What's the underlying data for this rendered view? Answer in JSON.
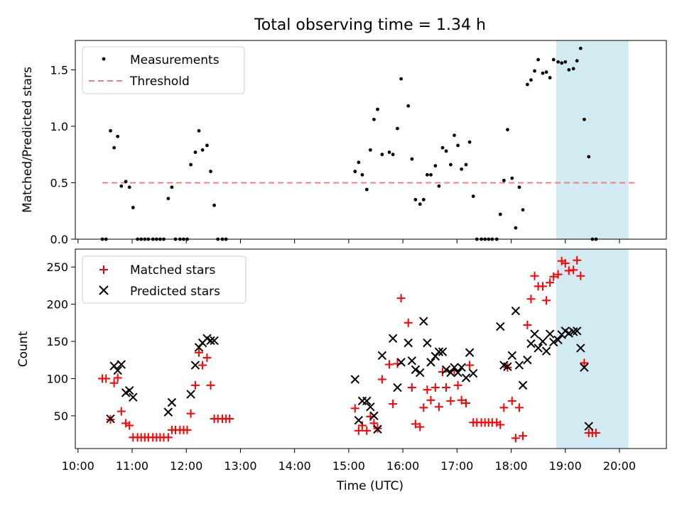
{
  "figure": {
    "title": "Total observing time = 1.34 h",
    "xlabel": "Time (UTC)",
    "highlight_color": "#add8e6",
    "highlight_range": [
      "18:50",
      "20:10"
    ],
    "x_range": [
      "09:57",
      "20:52"
    ],
    "x_ticks": [
      "10:00",
      "11:00",
      "12:00",
      "13:00",
      "14:00",
      "15:00",
      "16:00",
      "17:00",
      "18:00",
      "19:00",
      "20:00"
    ]
  },
  "chart_data": [
    {
      "type": "scatter",
      "ylabel": "Matched/Predicted stars",
      "ylim": [
        0,
        1.76
      ],
      "yticks": [
        "0.0",
        "0.5",
        "1.0",
        "1.5"
      ],
      "legend": {
        "placement": "top-left",
        "entries": [
          "Measurements",
          "Threshold"
        ]
      },
      "threshold": {
        "name": "Threshold",
        "value": 0.5,
        "x_range": [
          "10:27",
          "20:20"
        ],
        "color": "#f08080",
        "style": "dashed"
      },
      "series": [
        {
          "name": "Measurements",
          "color": "#000000",
          "marker": "dot",
          "points": [
            [
              "10:27",
              0
            ],
            [
              "10:31",
              0
            ],
            [
              "10:36",
              0.96
            ],
            [
              "10:40",
              0.81
            ],
            [
              "10:44",
              0.91
            ],
            [
              "10:48",
              0.47
            ],
            [
              "10:53",
              0.51
            ],
            [
              "10:57",
              0.46
            ],
            [
              "11:01",
              0.28
            ],
            [
              "11:06",
              0
            ],
            [
              "11:10",
              0
            ],
            [
              "11:14",
              0
            ],
            [
              "11:18",
              0
            ],
            [
              "11:23",
              0
            ],
            [
              "11:27",
              0
            ],
            [
              "11:31",
              0
            ],
            [
              "11:35",
              0
            ],
            [
              "11:40",
              0.36
            ],
            [
              "11:44",
              0.46
            ],
            [
              "11:48",
              0
            ],
            [
              "11:53",
              0
            ],
            [
              "11:57",
              0
            ],
            [
              "12:01",
              0
            ],
            [
              "12:05",
              0.66
            ],
            [
              "12:10",
              0.77
            ],
            [
              "12:14",
              0.96
            ],
            [
              "12:18",
              0.79
            ],
            [
              "12:23",
              0.83
            ],
            [
              "12:27",
              0.6
            ],
            [
              "12:31",
              0.3
            ],
            [
              "12:35",
              0
            ],
            [
              "12:40",
              0
            ],
            [
              "12:44",
              0
            ],
            [
              "15:07",
              0.6
            ],
            [
              "15:11",
              0.68
            ],
            [
              "15:15",
              0.57
            ],
            [
              "15:20",
              0.44
            ],
            [
              "15:24",
              0.79
            ],
            [
              "15:28",
              1.06
            ],
            [
              "15:32",
              1.15
            ],
            [
              "15:37",
              0.75
            ],
            [
              "15:45",
              0.77
            ],
            [
              "15:49",
              0.75
            ],
            [
              "15:54",
              0.98
            ],
            [
              "15:58",
              1.42
            ],
            [
              "16:06",
              1.18
            ],
            [
              "16:10",
              0.71
            ],
            [
              "16:14",
              0.35
            ],
            [
              "16:19",
              0.31
            ],
            [
              "16:23",
              0.35
            ],
            [
              "16:27",
              0.57
            ],
            [
              "16:31",
              0.57
            ],
            [
              "16:36",
              0.65
            ],
            [
              "16:40",
              0.47
            ],
            [
              "16:44",
              0.81
            ],
            [
              "16:48",
              0.78
            ],
            [
              "16:53",
              0.66
            ],
            [
              "16:57",
              0.92
            ],
            [
              "17:01",
              0.83
            ],
            [
              "17:05",
              0.62
            ],
            [
              "17:10",
              0.66
            ],
            [
              "17:14",
              0.86
            ],
            [
              "17:18",
              0.38
            ],
            [
              "17:22",
              0
            ],
            [
              "17:27",
              0
            ],
            [
              "17:31",
              0
            ],
            [
              "17:35",
              0
            ],
            [
              "17:39",
              0
            ],
            [
              "17:44",
              0
            ],
            [
              "17:48",
              0.22
            ],
            [
              "17:52",
              0.52
            ],
            [
              "17:56",
              0.97
            ],
            [
              "18:01",
              0.54
            ],
            [
              "18:05",
              0.1
            ],
            [
              "18:09",
              0.46
            ],
            [
              "18:13",
              0.26
            ],
            [
              "18:18",
              1.37
            ],
            [
              "18:22",
              1.41
            ],
            [
              "18:26",
              1.49
            ],
            [
              "18:30",
              1.59
            ],
            [
              "18:35",
              1.47
            ],
            [
              "18:39",
              1.48
            ],
            [
              "18:43",
              1.43
            ],
            [
              "18:47",
              1.59
            ],
            [
              "18:52",
              1.57
            ],
            [
              "18:56",
              1.56
            ],
            [
              "19:00",
              1.57
            ],
            [
              "19:04",
              1.5
            ],
            [
              "19:09",
              1.51
            ],
            [
              "19:13",
              1.58
            ],
            [
              "19:17",
              1.69
            ],
            [
              "19:21",
              1.06
            ],
            [
              "19:26",
              0.73
            ],
            [
              "19:30",
              0
            ],
            [
              "19:34",
              0
            ]
          ]
        }
      ]
    },
    {
      "type": "scatter",
      "ylabel": "Count",
      "ylim": [
        6,
        274
      ],
      "yticks": [
        "50",
        "100",
        "150",
        "200",
        "250"
      ],
      "legend": {
        "placement": "top-left",
        "entries": [
          "Matched stars",
          "Predicted stars"
        ]
      },
      "series": [
        {
          "name": "Matched stars",
          "color": "#ff0000",
          "marker": "plus",
          "points": [
            [
              "10:27",
              100
            ],
            [
              "10:31",
              100
            ],
            [
              "10:36",
              45
            ],
            [
              "10:40",
              94
            ],
            [
              "10:44",
              101
            ],
            [
              "10:48",
              56
            ],
            [
              "10:53",
              40
            ],
            [
              "10:57",
              37
            ],
            [
              "11:01",
              21
            ],
            [
              "11:06",
              21
            ],
            [
              "11:10",
              21
            ],
            [
              "11:14",
              21
            ],
            [
              "11:18",
              21
            ],
            [
              "11:23",
              21
            ],
            [
              "11:27",
              21
            ],
            [
              "11:31",
              21
            ],
            [
              "11:35",
              21
            ],
            [
              "11:40",
              21
            ],
            [
              "11:44",
              31
            ],
            [
              "11:48",
              31
            ],
            [
              "11:53",
              31
            ],
            [
              "11:57",
              31
            ],
            [
              "12:01",
              31
            ],
            [
              "12:05",
              53
            ],
            [
              "12:10",
              91
            ],
            [
              "12:14",
              135
            ],
            [
              "12:18",
              118
            ],
            [
              "12:23",
              128
            ],
            [
              "12:27",
              91
            ],
            [
              "12:31",
              46
            ],
            [
              "12:35",
              46
            ],
            [
              "12:40",
              46
            ],
            [
              "12:44",
              46
            ],
            [
              "12:48",
              46
            ],
            [
              "15:07",
              60
            ],
            [
              "15:11",
              30
            ],
            [
              "15:15",
              37
            ],
            [
              "15:20",
              30
            ],
            [
              "15:24",
              49
            ],
            [
              "15:28",
              40
            ],
            [
              "15:32",
              33
            ],
            [
              "15:37",
              99
            ],
            [
              "15:45",
              119
            ],
            [
              "15:49",
              66
            ],
            [
              "15:54",
              120
            ],
            [
              "15:58",
              208
            ],
            [
              "16:06",
              175
            ],
            [
              "16:10",
              88
            ],
            [
              "16:14",
              39
            ],
            [
              "16:19",
              35
            ],
            [
              "16:23",
              61
            ],
            [
              "16:27",
              85
            ],
            [
              "16:31",
              71
            ],
            [
              "16:36",
              88
            ],
            [
              "16:40",
              62
            ],
            [
              "16:44",
              109
            ],
            [
              "16:48",
              88
            ],
            [
              "16:53",
              70
            ],
            [
              "16:57",
              111
            ],
            [
              "17:01",
              91
            ],
            [
              "17:05",
              71
            ],
            [
              "17:10",
              67
            ],
            [
              "17:14",
              118
            ],
            [
              "17:18",
              41
            ],
            [
              "17:22",
              41
            ],
            [
              "17:27",
              41
            ],
            [
              "17:31",
              41
            ],
            [
              "17:35",
              41
            ],
            [
              "17:39",
              41
            ],
            [
              "17:44",
              41
            ],
            [
              "17:48",
              38
            ],
            [
              "17:52",
              61
            ],
            [
              "17:56",
              115
            ],
            [
              "18:01",
              70
            ],
            [
              "18:05",
              20
            ],
            [
              "18:09",
              61
            ],
            [
              "18:13",
              23
            ],
            [
              "18:18",
              172
            ],
            [
              "18:22",
              207
            ],
            [
              "18:26",
              238
            ],
            [
              "18:30",
              224
            ],
            [
              "18:35",
              224
            ],
            [
              "18:39",
              205
            ],
            [
              "18:43",
              229
            ],
            [
              "18:47",
              237
            ],
            [
              "18:52",
              240
            ],
            [
              "18:56",
              258
            ],
            [
              "19:00",
              255
            ],
            [
              "19:04",
              245
            ],
            [
              "19:09",
              246
            ],
            [
              "19:13",
              259
            ],
            [
              "19:17",
              238
            ],
            [
              "19:21",
              121
            ],
            [
              "19:26",
              27
            ],
            [
              "19:30",
              27
            ],
            [
              "19:34",
              27
            ]
          ]
        },
        {
          "name": "Predicted stars",
          "color": "#000000",
          "marker": "x",
          "points": [
            [
              "10:36",
              46
            ],
            [
              "10:40",
              117
            ],
            [
              "10:44",
              111
            ],
            [
              "10:48",
              119
            ],
            [
              "10:53",
              81
            ],
            [
              "10:57",
              84
            ],
            [
              "11:01",
              75
            ],
            [
              "11:40",
              55
            ],
            [
              "11:44",
              68
            ],
            [
              "12:05",
              79
            ],
            [
              "12:10",
              118
            ],
            [
              "12:14",
              142
            ],
            [
              "12:18",
              148
            ],
            [
              "12:23",
              154
            ],
            [
              "12:27",
              151
            ],
            [
              "12:31",
              151
            ],
            [
              "15:07",
              99
            ],
            [
              "15:11",
              44
            ],
            [
              "15:15",
              70
            ],
            [
              "15:20",
              70
            ],
            [
              "15:24",
              62
            ],
            [
              "15:28",
              50
            ],
            [
              "15:32",
              32
            ],
            [
              "15:37",
              131
            ],
            [
              "15:49",
              154
            ],
            [
              "15:54",
              88
            ],
            [
              "15:58",
              122
            ],
            [
              "16:06",
              148
            ],
            [
              "16:10",
              124
            ],
            [
              "16:14",
              112
            ],
            [
              "16:19",
              108
            ],
            [
              "16:23",
              177
            ],
            [
              "16:27",
              148
            ],
            [
              "16:31",
              122
            ],
            [
              "16:36",
              130
            ],
            [
              "16:40",
              136
            ],
            [
              "16:44",
              136
            ],
            [
              "16:48",
              112
            ],
            [
              "16:53",
              108
            ],
            [
              "16:57",
              115
            ],
            [
              "17:01",
              108
            ],
            [
              "17:05",
              115
            ],
            [
              "17:10",
              101
            ],
            [
              "17:14",
              135
            ],
            [
              "17:18",
              107
            ],
            [
              "17:48",
              170
            ],
            [
              "17:52",
              118
            ],
            [
              "17:56",
              116
            ],
            [
              "18:01",
              131
            ],
            [
              "18:05",
              191
            ],
            [
              "18:09",
              118
            ],
            [
              "18:13",
              91
            ],
            [
              "18:18",
              125
            ],
            [
              "18:22",
              147
            ],
            [
              "18:26",
              160
            ],
            [
              "18:30",
              141
            ],
            [
              "18:35",
              150
            ],
            [
              "18:39",
              137
            ],
            [
              "18:43",
              160
            ],
            [
              "18:47",
              149
            ],
            [
              "18:52",
              152
            ],
            [
              "18:56",
              159
            ],
            [
              "19:00",
              164
            ],
            [
              "19:04",
              161
            ],
            [
              "19:09",
              163
            ],
            [
              "19:13",
              164
            ],
            [
              "19:17",
              141
            ],
            [
              "19:21",
              115
            ],
            [
              "19:26",
              36
            ]
          ]
        }
      ]
    }
  ]
}
